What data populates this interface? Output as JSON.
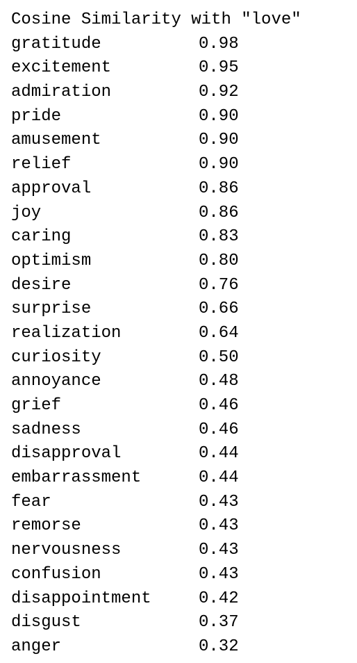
{
  "title": "Cosine Similarity with \"love\"",
  "rows": [
    {
      "word": "gratitude",
      "score": "0.98"
    },
    {
      "word": "excitement",
      "score": "0.95"
    },
    {
      "word": "admiration",
      "score": "0.92"
    },
    {
      "word": "pride",
      "score": "0.90"
    },
    {
      "word": "amusement",
      "score": "0.90"
    },
    {
      "word": "relief",
      "score": "0.90"
    },
    {
      "word": "approval",
      "score": "0.86"
    },
    {
      "word": "joy",
      "score": "0.86"
    },
    {
      "word": "caring",
      "score": "0.83"
    },
    {
      "word": "optimism",
      "score": "0.80"
    },
    {
      "word": "desire",
      "score": "0.76"
    },
    {
      "word": "surprise",
      "score": "0.66"
    },
    {
      "word": "realization",
      "score": "0.64"
    },
    {
      "word": "curiosity",
      "score": "0.50"
    },
    {
      "word": "annoyance",
      "score": "0.48"
    },
    {
      "word": "grief",
      "score": "0.46"
    },
    {
      "word": "sadness",
      "score": "0.46"
    },
    {
      "word": "disapproval",
      "score": "0.44"
    },
    {
      "word": "embarrassment",
      "score": "0.44"
    },
    {
      "word": "fear",
      "score": "0.43"
    },
    {
      "word": "remorse",
      "score": "0.43"
    },
    {
      "word": "nervousness",
      "score": "0.43"
    },
    {
      "word": "confusion",
      "score": "0.43"
    },
    {
      "word": "disappointment",
      "score": "0.42"
    },
    {
      "word": "disgust",
      "score": "0.37"
    },
    {
      "word": "anger",
      "score": "0.32"
    }
  ]
}
